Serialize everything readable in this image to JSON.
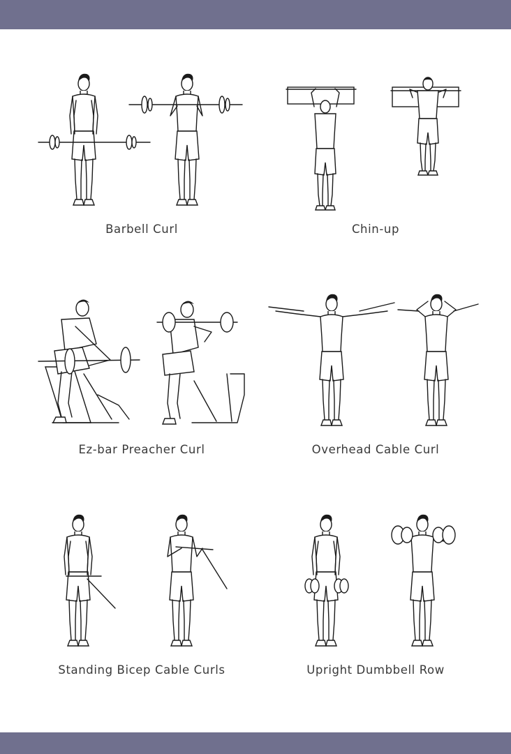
{
  "header": {
    "band_color": "#70708e"
  },
  "footer": {
    "band_color": "#70708e"
  },
  "exercises": [
    {
      "caption": "Barbell Curl",
      "icon": "barbell-curl-illustration"
    },
    {
      "caption": "Chin-up",
      "icon": "chin-up-illustration"
    },
    {
      "caption": "Ez-bar Preacher Curl",
      "icon": "ez-bar-preacher-curl-illustration"
    },
    {
      "caption": "Overhead Cable Curl",
      "icon": "overhead-cable-curl-illustration"
    },
    {
      "caption": "Standing Bicep Cable Curls",
      "icon": "standing-bicep-cable-curls-illustration"
    },
    {
      "caption": "Upright Dumbbell Row",
      "icon": "upright-dumbbell-row-illustration"
    }
  ]
}
